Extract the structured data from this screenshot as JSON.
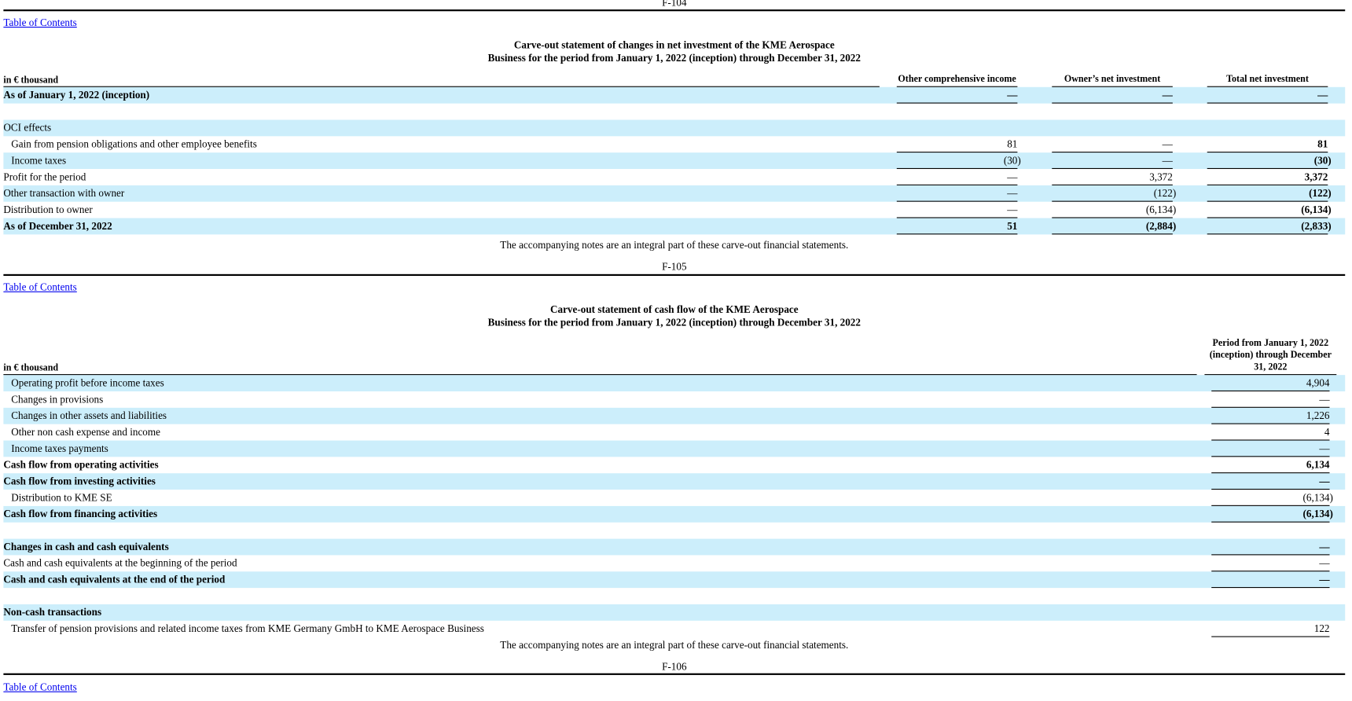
{
  "top_page_number": "F-104",
  "sections": [
    {
      "toc_link": "Table of Contents",
      "title_line1": "Carve-out statement of changes in net investment of the KME Aerospace",
      "title_line2": "Business for the period from January 1, 2022 (inception) through December 31, 2022",
      "unit": "in € thousand",
      "columns": [
        {
          "label": "Other comprehensive income"
        },
        {
          "label": "Owner’s net investment"
        },
        {
          "label": "Total net investment",
          "bold": true
        }
      ],
      "row_groups": [
        [
          {
            "label": "As of January 1, 2022 (inception)",
            "bold": true,
            "values": [
              "—",
              "—",
              "—"
            ]
          }
        ],
        [
          {
            "label": "OCI effects"
          },
          {
            "label": "Gain from pension obligations and other employee benefits",
            "indent": true,
            "values": [
              "81",
              "—",
              "81"
            ]
          },
          {
            "label": "Income taxes",
            "indent": true,
            "values": [
              "(30)",
              "—",
              "(30)"
            ]
          },
          {
            "label": "Profit for the period",
            "values": [
              "—",
              "3,372",
              "3,372"
            ]
          },
          {
            "label": "Other transaction with owner",
            "values": [
              "—",
              "(122)",
              "(122)"
            ]
          },
          {
            "label": "Distribution to owner",
            "values": [
              "—",
              "(6,134)",
              "(6,134)"
            ]
          },
          {
            "label": "As of December 31, 2022",
            "bold": true,
            "values": [
              "51",
              "(2,884)",
              "(2,833)"
            ]
          }
        ]
      ],
      "note": "The accompanying notes are an integral part of these carve-out financial statements.",
      "page_number": "F-105"
    },
    {
      "toc_link": "Table of Contents",
      "title_line1": "Carve-out statement of cash flow of the KME Aerospace",
      "title_line2": "Business for the period from January 1, 2022 (inception) through December 31, 2022",
      "unit": "in € thousand",
      "columns": [
        {
          "label": "Period from January 1, 2022 (inception) through December 31, 2022"
        }
      ],
      "row_groups": [
        [
          {
            "label": "Operating profit before income taxes",
            "indent": true,
            "values": [
              "4,904"
            ]
          },
          {
            "label": "Changes in provisions",
            "indent": true,
            "values": [
              "—"
            ]
          },
          {
            "label": "Changes in other assets and liabilities",
            "indent": true,
            "values": [
              "1,226"
            ]
          },
          {
            "label": "Other non cash expense and income",
            "indent": true,
            "values": [
              "4"
            ]
          },
          {
            "label": "Income taxes payments",
            "indent": true,
            "values": [
              "—"
            ]
          },
          {
            "label": "Cash flow from operating activities",
            "bold": true,
            "values": [
              "6,134"
            ]
          },
          {
            "label": "Cash flow from investing activities",
            "bold": true,
            "values": [
              "—"
            ]
          },
          {
            "label": "Distribution to KME SE",
            "indent": true,
            "values": [
              "(6,134)"
            ]
          },
          {
            "label": "Cash flow from financing activities",
            "bold": true,
            "values": [
              "(6,134)"
            ]
          }
        ],
        [
          {
            "label": "Changes in cash and cash equivalents",
            "bold": true,
            "values": [
              "—"
            ]
          },
          {
            "label": "Cash and cash equivalents at the beginning of the period",
            "values": [
              "—"
            ]
          },
          {
            "label": "Cash and cash equivalents at the end of the period",
            "bold": true,
            "values": [
              "—"
            ]
          }
        ],
        [
          {
            "label": "Non-cash transactions",
            "bold": true
          },
          {
            "label": "Transfer of pension provisions and related income taxes from KME Germany GmbH to KME Aerospace Business",
            "indent": true,
            "values": [
              "122"
            ]
          }
        ]
      ],
      "note": "The accompanying notes are an integral part of these carve-out financial statements.",
      "page_number": "F-106",
      "toc_link_after": "Table of Contents"
    }
  ]
}
